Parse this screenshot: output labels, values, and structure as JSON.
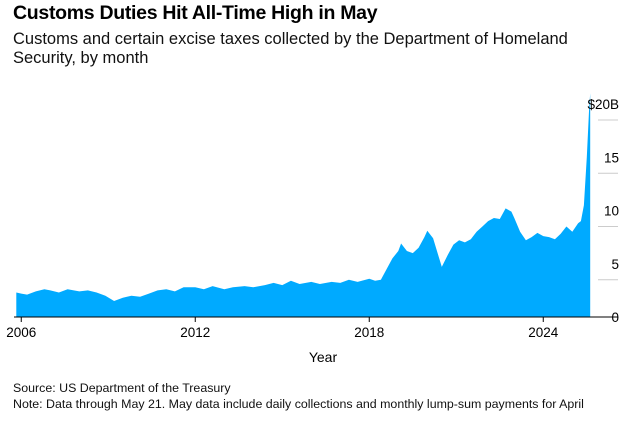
{
  "title": "Customs Duties Hit All-Time High in May",
  "subtitle": "Customs and certain excise taxes collected by the Department of Homeland Security, by month",
  "source": "Source: US Department of the Treasury",
  "note": "Note: Data through May 21. May data include daily collections and monthly lump-sum payments for April",
  "colors": {
    "area": "#00aaff",
    "axis": "#000000",
    "grid": "#cccccc"
  },
  "chart_data": {
    "type": "area",
    "xlabel": "Year",
    "ylabel": "",
    "unit": "$ billions",
    "xlim": [
      2005.75,
      2025.75
    ],
    "ylim": [
      0,
      20
    ],
    "x_ticks": [
      2006,
      2012,
      2018,
      2024
    ],
    "x_tick_labels": [
      "2006",
      "2012",
      "2018",
      "2024"
    ],
    "y_ticks": [
      0,
      5,
      10,
      15,
      20
    ],
    "y_tick_labels": [
      "0",
      "5",
      "10",
      "15",
      "$20B"
    ],
    "grid": "horizontal",
    "series": [
      {
        "points": [
          [
            2005.83,
            2.3
          ],
          [
            2006.0,
            2.2
          ],
          [
            2006.2,
            2.1
          ],
          [
            2006.5,
            2.4
          ],
          [
            2006.8,
            2.6
          ],
          [
            2007.0,
            2.5
          ],
          [
            2007.3,
            2.3
          ],
          [
            2007.6,
            2.6
          ],
          [
            2008.0,
            2.4
          ],
          [
            2008.3,
            2.5
          ],
          [
            2008.6,
            2.3
          ],
          [
            2008.9,
            2.0
          ],
          [
            2009.2,
            1.5
          ],
          [
            2009.5,
            1.8
          ],
          [
            2009.8,
            2.0
          ],
          [
            2010.1,
            1.9
          ],
          [
            2010.4,
            2.2
          ],
          [
            2010.7,
            2.5
          ],
          [
            2011.0,
            2.6
          ],
          [
            2011.3,
            2.4
          ],
          [
            2011.6,
            2.8
          ],
          [
            2012.0,
            2.8
          ],
          [
            2012.3,
            2.6
          ],
          [
            2012.6,
            2.9
          ],
          [
            2013.0,
            2.6
          ],
          [
            2013.3,
            2.8
          ],
          [
            2013.7,
            2.9
          ],
          [
            2014.0,
            2.8
          ],
          [
            2014.4,
            3.0
          ],
          [
            2014.7,
            3.2
          ],
          [
            2015.0,
            3.0
          ],
          [
            2015.3,
            3.4
          ],
          [
            2015.6,
            3.1
          ],
          [
            2016.0,
            3.3
          ],
          [
            2016.3,
            3.1
          ],
          [
            2016.7,
            3.3
          ],
          [
            2017.0,
            3.2
          ],
          [
            2017.3,
            3.5
          ],
          [
            2017.6,
            3.3
          ],
          [
            2018.0,
            3.6
          ],
          [
            2018.2,
            3.4
          ],
          [
            2018.4,
            3.5
          ],
          [
            2018.6,
            4.5
          ],
          [
            2018.8,
            5.5
          ],
          [
            2019.0,
            6.2
          ],
          [
            2019.1,
            6.9
          ],
          [
            2019.3,
            6.2
          ],
          [
            2019.5,
            6.0
          ],
          [
            2019.7,
            6.5
          ],
          [
            2019.9,
            7.5
          ],
          [
            2020.0,
            8.1
          ],
          [
            2020.2,
            7.4
          ],
          [
            2020.4,
            5.6
          ],
          [
            2020.5,
            4.7
          ],
          [
            2020.7,
            5.8
          ],
          [
            2020.9,
            6.8
          ],
          [
            2021.1,
            7.2
          ],
          [
            2021.3,
            7.0
          ],
          [
            2021.5,
            7.3
          ],
          [
            2021.7,
            8.0
          ],
          [
            2021.9,
            8.5
          ],
          [
            2022.1,
            9.0
          ],
          [
            2022.3,
            9.3
          ],
          [
            2022.5,
            9.2
          ],
          [
            2022.7,
            10.2
          ],
          [
            2022.9,
            9.9
          ],
          [
            2023.0,
            9.3
          ],
          [
            2023.2,
            8.0
          ],
          [
            2023.4,
            7.2
          ],
          [
            2023.6,
            7.5
          ],
          [
            2023.8,
            7.9
          ],
          [
            2024.0,
            7.6
          ],
          [
            2024.2,
            7.5
          ],
          [
            2024.4,
            7.3
          ],
          [
            2024.6,
            7.8
          ],
          [
            2024.8,
            8.5
          ],
          [
            2025.0,
            8.0
          ],
          [
            2025.2,
            8.8
          ],
          [
            2025.3,
            9.0
          ],
          [
            2025.4,
            10.5
          ],
          [
            2025.5,
            15.0
          ],
          [
            2025.58,
            19.5
          ],
          [
            2025.62,
            21.0
          ]
        ]
      }
    ]
  }
}
